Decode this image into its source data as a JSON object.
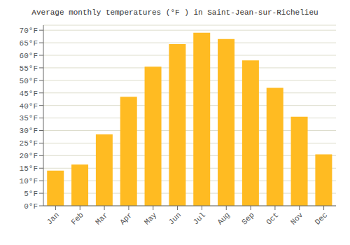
{
  "chart_data": {
    "type": "bar",
    "title": "Average monthly temperatures (°F ) in Saint-Jean-sur-Richelieu",
    "categories": [
      "Jan",
      "Feb",
      "Mar",
      "Apr",
      "May",
      "Jun",
      "Jul",
      "Aug",
      "Sep",
      "Oct",
      "Nov",
      "Dec"
    ],
    "values": [
      14,
      16.5,
      28.5,
      43.5,
      55.5,
      64.5,
      69,
      66.5,
      58,
      47,
      35.5,
      20.5
    ],
    "color": "#FFBB22",
    "ylim": [
      0,
      72
    ],
    "yticks": [
      {
        "value": 0,
        "label": "0°F"
      },
      {
        "value": 5,
        "label": "5°F"
      },
      {
        "value": 10,
        "label": "10°F"
      },
      {
        "value": 15,
        "label": "15°F"
      },
      {
        "value": 20,
        "label": "20°F"
      },
      {
        "value": 25,
        "label": "25°F"
      },
      {
        "value": 30,
        "label": "30°F"
      },
      {
        "value": 35,
        "label": "35°F"
      },
      {
        "value": 40,
        "label": "40°F"
      },
      {
        "value": 45,
        "label": "45°F"
      },
      {
        "value": 50,
        "label": "50°F"
      },
      {
        "value": 55,
        "label": "55°F"
      },
      {
        "value": 60,
        "label": "60°F"
      },
      {
        "value": 65,
        "label": "65°F"
      },
      {
        "value": 70,
        "label": "70°F"
      }
    ],
    "grid": true
  }
}
